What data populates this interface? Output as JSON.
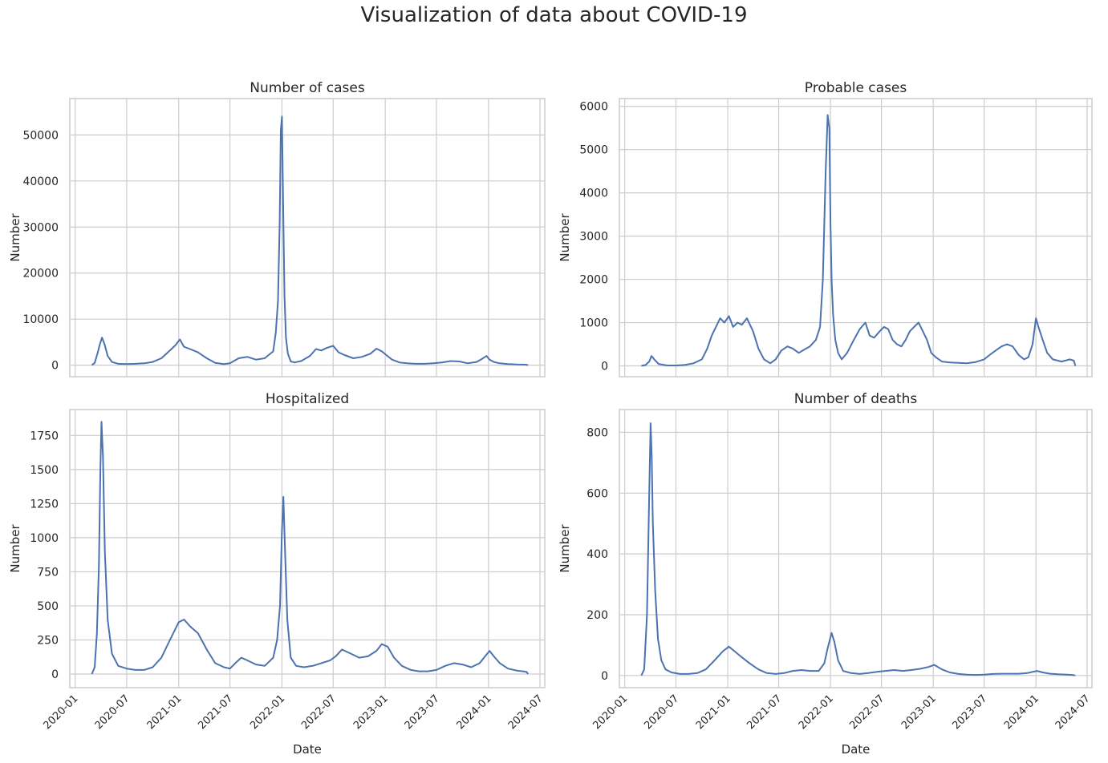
{
  "figure": {
    "title": "Visualization of data about COVID-19"
  },
  "colors": {
    "line": "#4c72b0",
    "grid": "#cccccc",
    "frame": "#cccccc",
    "text": "#262626"
  },
  "x_axis": {
    "label": "Date",
    "range": [
      "2019-12-13",
      "2024-07-18"
    ],
    "ticks": [
      "2020-01",
      "2020-07",
      "2021-01",
      "2021-07",
      "2022-01",
      "2022-07",
      "2023-01",
      "2023-07",
      "2024-01",
      "2024-07"
    ]
  },
  "chart_data": [
    {
      "type": "line",
      "title": "Number of cases",
      "ylabel": "Number",
      "xlabel": "",
      "ylim": [
        -2500,
        57900
      ],
      "yticks": [
        0,
        10000,
        20000,
        30000,
        40000,
        50000
      ],
      "grid": true,
      "x": [
        "2020-02-29",
        "2020-03-10",
        "2020-03-20",
        "2020-03-28",
        "2020-04-05",
        "2020-04-15",
        "2020-04-25",
        "2020-05-10",
        "2020-06-01",
        "2020-07-01",
        "2020-08-01",
        "2020-09-01",
        "2020-10-01",
        "2020-11-01",
        "2020-12-01",
        "2020-12-20",
        "2021-01-05",
        "2021-01-20",
        "2021-02-10",
        "2021-03-10",
        "2021-04-10",
        "2021-05-10",
        "2021-06-10",
        "2021-07-01",
        "2021-08-01",
        "2021-09-01",
        "2021-10-01",
        "2021-11-01",
        "2021-12-01",
        "2021-12-10",
        "2021-12-18",
        "2021-12-24",
        "2021-12-28",
        "2022-01-01",
        "2022-01-05",
        "2022-01-10",
        "2022-01-15",
        "2022-01-22",
        "2022-02-01",
        "2022-02-15",
        "2022-03-10",
        "2022-04-10",
        "2022-05-01",
        "2022-05-20",
        "2022-06-10",
        "2022-07-01",
        "2022-07-20",
        "2022-08-10",
        "2022-09-10",
        "2022-10-10",
        "2022-11-10",
        "2022-12-01",
        "2022-12-20",
        "2023-01-05",
        "2023-01-25",
        "2023-02-20",
        "2023-03-20",
        "2023-04-20",
        "2023-05-20",
        "2023-06-20",
        "2023-07-20",
        "2023-08-20",
        "2023-09-20",
        "2023-10-20",
        "2023-11-20",
        "2023-12-10",
        "2023-12-25",
        "2024-01-05",
        "2024-01-20",
        "2024-02-10",
        "2024-03-10",
        "2024-04-10",
        "2024-05-01",
        "2024-05-15",
        "2024-05-20"
      ],
      "values": [
        0,
        500,
        2600,
        4500,
        6000,
        4300,
        2000,
        700,
        300,
        250,
        300,
        400,
        700,
        1500,
        3200,
        4300,
        5600,
        4000,
        3500,
        2800,
        1500,
        500,
        250,
        400,
        1500,
        1800,
        1200,
        1500,
        3000,
        7000,
        14000,
        31000,
        51000,
        54000,
        35000,
        15000,
        6000,
        2500,
        800,
        600,
        900,
        2000,
        3500,
        3200,
        3800,
        4200,
        2800,
        2200,
        1500,
        1800,
        2500,
        3600,
        3000,
        2200,
        1200,
        600,
        400,
        300,
        300,
        400,
        600,
        900,
        800,
        400,
        700,
        1400,
        2000,
        1200,
        700,
        400,
        250,
        150,
        120,
        100,
        0
      ]
    },
    {
      "type": "line",
      "title": "Probable cases",
      "ylabel": "Number",
      "xlabel": "",
      "ylim": [
        -250,
        6180
      ],
      "yticks": [
        0,
        1000,
        2000,
        3000,
        4000,
        5000,
        6000
      ],
      "grid": true,
      "x": [
        "2020-02-29",
        "2020-03-15",
        "2020-03-28",
        "2020-04-05",
        "2020-04-15",
        "2020-05-01",
        "2020-06-01",
        "2020-07-01",
        "2020-08-01",
        "2020-09-01",
        "2020-10-01",
        "2020-10-20",
        "2020-11-05",
        "2020-11-20",
        "2020-12-05",
        "2020-12-20",
        "2021-01-05",
        "2021-01-20",
        "2021-02-05",
        "2021-02-20",
        "2021-03-10",
        "2021-04-01",
        "2021-04-20",
        "2021-05-10",
        "2021-06-01",
        "2021-06-20",
        "2021-07-10",
        "2021-08-01",
        "2021-08-20",
        "2021-09-10",
        "2021-10-01",
        "2021-10-20",
        "2021-11-10",
        "2021-11-25",
        "2021-12-05",
        "2021-12-15",
        "2021-12-22",
        "2021-12-28",
        "2022-01-01",
        "2022-01-05",
        "2022-01-10",
        "2022-01-18",
        "2022-01-28",
        "2022-02-10",
        "2022-03-01",
        "2022-03-25",
        "2022-04-15",
        "2022-05-05",
        "2022-05-20",
        "2022-06-05",
        "2022-06-25",
        "2022-07-10",
        "2022-07-25",
        "2022-08-10",
        "2022-08-25",
        "2022-09-10",
        "2022-09-25",
        "2022-10-10",
        "2022-10-25",
        "2022-11-10",
        "2022-11-25",
        "2022-12-10",
        "2022-12-25",
        "2023-01-10",
        "2023-02-01",
        "2023-03-01",
        "2023-04-01",
        "2023-05-01",
        "2023-06-01",
        "2023-07-01",
        "2023-07-20",
        "2023-08-10",
        "2023-09-01",
        "2023-09-20",
        "2023-10-10",
        "2023-11-01",
        "2023-11-20",
        "2023-12-05",
        "2023-12-20",
        "2024-01-01",
        "2024-01-10",
        "2024-01-25",
        "2024-02-10",
        "2024-03-01",
        "2024-04-01",
        "2024-05-01",
        "2024-05-15",
        "2024-05-20"
      ],
      "values": [
        0,
        20,
        100,
        230,
        150,
        40,
        10,
        10,
        20,
        60,
        150,
        400,
        700,
        900,
        1100,
        1000,
        1150,
        900,
        1000,
        950,
        1100,
        800,
        400,
        150,
        60,
        150,
        350,
        450,
        400,
        300,
        380,
        450,
        600,
        900,
        2000,
        4500,
        5800,
        5500,
        3300,
        2000,
        1200,
        600,
        300,
        150,
        300,
        600,
        850,
        1000,
        700,
        650,
        800,
        900,
        850,
        600,
        500,
        450,
        600,
        800,
        900,
        1000,
        800,
        600,
        300,
        200,
        100,
        80,
        70,
        60,
        90,
        150,
        250,
        350,
        450,
        500,
        450,
        250,
        150,
        200,
        500,
        1100,
        900,
        600,
        300,
        150,
        100,
        150,
        120,
        0
      ]
    },
    {
      "type": "line",
      "title": "Hospitalized",
      "ylabel": "Number",
      "xlabel": "Date",
      "ylim": [
        -100,
        1940
      ],
      "yticks": [
        0,
        250,
        500,
        750,
        1000,
        1250,
        1500,
        1750
      ],
      "grid": true,
      "x": [
        "2020-02-29",
        "2020-03-10",
        "2020-03-18",
        "2020-03-25",
        "2020-03-30",
        "2020-04-03",
        "2020-04-08",
        "2020-04-15",
        "2020-04-25",
        "2020-05-10",
        "2020-06-01",
        "2020-07-01",
        "2020-08-01",
        "2020-09-01",
        "2020-10-01",
        "2020-11-01",
        "2020-12-01",
        "2021-01-01",
        "2021-01-20",
        "2021-02-10",
        "2021-03-10",
        "2021-04-10",
        "2021-05-10",
        "2021-06-10",
        "2021-07-01",
        "2021-07-20",
        "2021-08-10",
        "2021-09-01",
        "2021-10-01",
        "2021-11-01",
        "2021-12-01",
        "2021-12-15",
        "2021-12-25",
        "2022-01-01",
        "2022-01-06",
        "2022-01-12",
        "2022-01-20",
        "2022-02-01",
        "2022-02-20",
        "2022-03-20",
        "2022-04-20",
        "2022-05-20",
        "2022-06-20",
        "2022-07-10",
        "2022-08-01",
        "2022-09-01",
        "2022-10-01",
        "2022-11-01",
        "2022-12-01",
        "2022-12-20",
        "2023-01-10",
        "2023-02-01",
        "2023-03-01",
        "2023-04-01",
        "2023-05-01",
        "2023-06-01",
        "2023-07-01",
        "2023-08-01",
        "2023-09-01",
        "2023-10-01",
        "2023-11-01",
        "2023-12-01",
        "2023-12-20",
        "2024-01-05",
        "2024-01-20",
        "2024-02-10",
        "2024-03-10",
        "2024-04-10",
        "2024-05-01",
        "2024-05-15",
        "2024-05-20"
      ],
      "values": [
        0,
        50,
        300,
        800,
        1500,
        1850,
        1600,
        900,
        400,
        150,
        60,
        40,
        30,
        30,
        50,
        120,
        250,
        380,
        400,
        350,
        300,
        180,
        80,
        50,
        40,
        80,
        120,
        100,
        70,
        60,
        120,
        250,
        500,
        1050,
        1300,
        900,
        400,
        120,
        60,
        50,
        60,
        80,
        100,
        130,
        180,
        150,
        120,
        130,
        170,
        220,
        200,
        120,
        60,
        30,
        20,
        20,
        30,
        60,
        80,
        70,
        50,
        80,
        130,
        170,
        130,
        80,
        40,
        25,
        20,
        15,
        0
      ]
    },
    {
      "type": "line",
      "title": "Number of deaths",
      "ylabel": "Number",
      "xlabel": "Date",
      "ylim": [
        -40,
        875
      ],
      "yticks": [
        0,
        200,
        400,
        600,
        800
      ],
      "grid": true,
      "x": [
        "2020-02-29",
        "2020-03-10",
        "2020-03-20",
        "2020-03-28",
        "2020-04-02",
        "2020-04-06",
        "2020-04-10",
        "2020-04-18",
        "2020-04-28",
        "2020-05-10",
        "2020-05-25",
        "2020-06-15",
        "2020-07-15",
        "2020-08-15",
        "2020-09-15",
        "2020-10-15",
        "2020-11-15",
        "2020-12-15",
        "2021-01-05",
        "2021-01-25",
        "2021-02-20",
        "2021-03-20",
        "2021-04-20",
        "2021-05-20",
        "2021-06-20",
        "2021-07-20",
        "2021-08-20",
        "2021-09-20",
        "2021-10-20",
        "2021-11-20",
        "2021-12-10",
        "2021-12-22",
        "2022-01-05",
        "2022-01-15",
        "2022-01-28",
        "2022-02-15",
        "2022-03-15",
        "2022-04-15",
        "2022-05-15",
        "2022-06-15",
        "2022-07-15",
        "2022-08-15",
        "2022-09-15",
        "2022-10-15",
        "2022-11-15",
        "2022-12-15",
        "2023-01-05",
        "2023-02-01",
        "2023-03-01",
        "2023-04-01",
        "2023-05-01",
        "2023-06-01",
        "2023-07-01",
        "2023-08-01",
        "2023-09-01",
        "2023-10-01",
        "2023-11-01",
        "2023-12-01",
        "2023-12-20",
        "2024-01-05",
        "2024-01-25",
        "2024-02-20",
        "2024-03-20",
        "2024-04-20",
        "2024-05-10",
        "2024-05-20"
      ],
      "values": [
        0,
        20,
        200,
        600,
        830,
        720,
        500,
        280,
        120,
        50,
        20,
        10,
        5,
        5,
        8,
        20,
        50,
        80,
        95,
        80,
        60,
        40,
        20,
        8,
        5,
        8,
        15,
        18,
        15,
        15,
        40,
        90,
        140,
        110,
        50,
        15,
        8,
        5,
        8,
        12,
        15,
        18,
        15,
        18,
        22,
        28,
        35,
        20,
        10,
        5,
        3,
        2,
        3,
        5,
        6,
        6,
        6,
        8,
        12,
        15,
        10,
        6,
        4,
        3,
        2,
        0
      ]
    }
  ]
}
